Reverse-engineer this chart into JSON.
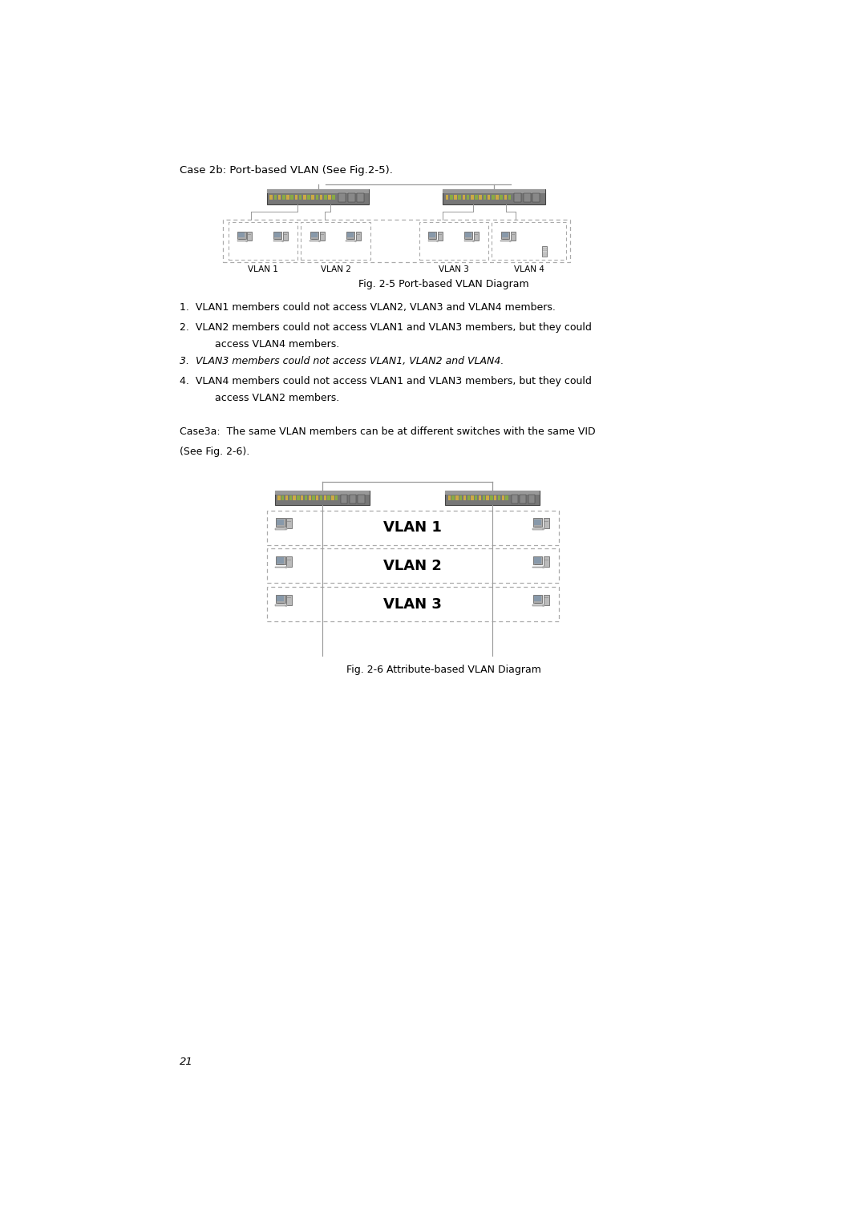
{
  "bg_color": "#ffffff",
  "page_width": 10.8,
  "page_height": 15.28,
  "title1": "Case 2b: Port-based VLAN (See Fig.2-5).",
  "fig1_caption": "Fig. 2-5 Port-based VLAN Diagram",
  "bullet1": "1.  VLAN1 members could not access VLAN2, VLAN3 and VLAN4 members.",
  "bullet2a": "2.  VLAN2 members could not access VLAN1 and VLAN3 members, but they could",
  "bullet2b": "      access VLAN4 members.",
  "bullet3": "3.  VLAN3 members could not access VLAN1, VLAN2 and VLAN4.",
  "bullet4a": "4.  VLAN4 members could not access VLAN1 and VLAN3 members, but they could",
  "bullet4b": "      access VLAN2 members.",
  "title2a": "Case3a:  The same VLAN members can be at different switches with the same VID",
  "title2b": "(See Fig. 2-6).",
  "fig2_caption": "Fig. 2-6 Attribute-based VLAN Diagram",
  "page_number": "21",
  "vlan_labels_fig1": [
    "VLAN 1",
    "VLAN 2",
    "VLAN 3",
    "VLAN 4"
  ],
  "vlan_labels_fig2": [
    "VLAN 1",
    "VLAN 2",
    "VLAN 3"
  ],
  "line_color": "#999999",
  "dash_color": "#aaaaaa",
  "text_color": "#000000",
  "switch_body_color": "#777777",
  "switch_dark": "#555555",
  "switch_port_color": "#ccaa44"
}
